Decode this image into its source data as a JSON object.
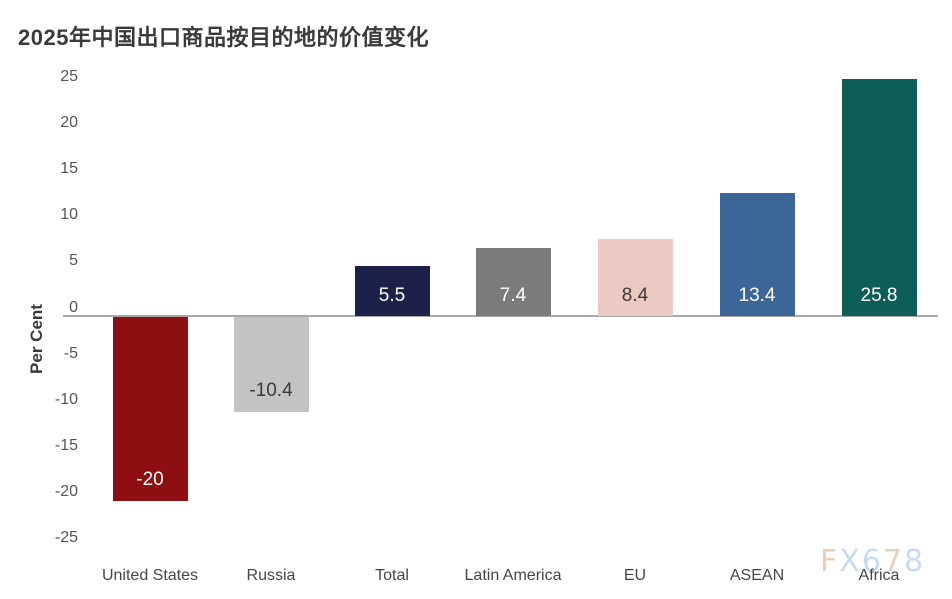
{
  "page": {
    "title": "2025年中国出口商品按目的地的价值变化"
  },
  "watermark": {
    "text": "FX678",
    "letters": [
      {
        "ch": "F",
        "color": "#e8d0b5"
      },
      {
        "ch": "X",
        "color": "#c8daf0"
      },
      {
        "ch": "6",
        "color": "#c8daf0"
      },
      {
        "ch": "7",
        "color": "#e8d0b5"
      },
      {
        "ch": "8",
        "color": "#c8daf0"
      }
    ]
  },
  "chart_data": {
    "type": "bar",
    "title": "2025年中国出口商品按目的地的价值变化",
    "xlabel": "",
    "ylabel": "Per Cent",
    "categories": [
      "United States",
      "Russia",
      "Total",
      "Latin America",
      "EU",
      "ASEAN",
      "Africa"
    ],
    "values": [
      -20,
      -10.4,
      5.5,
      7.4,
      8.4,
      13.4,
      25.8
    ],
    "value_labels": [
      "-20",
      "-10.4",
      "5.5",
      "7.4",
      "8.4",
      "13.4",
      "25.8"
    ],
    "bar_colors": [
      "#8e0e11",
      "#c3c3c3",
      "#1b2148",
      "#7b7b7b",
      "#edc9c4",
      "#3c6698",
      "#0d5e56"
    ],
    "value_label_colors": [
      "#ffffff",
      "#3b3b3b",
      "#ffffff",
      "#ffffff",
      "#3b3b3b",
      "#ffffff",
      "#ffffff"
    ],
    "yticks": [
      25,
      20,
      15,
      10,
      5,
      0,
      -5,
      -10,
      -15,
      -20,
      -25
    ],
    "ylim": [
      -25,
      25
    ],
    "grid": false,
    "legend": false,
    "zero_line_color": "#a8a8a8",
    "tick_color": "#565656",
    "title_color": "#3a3a3a"
  }
}
